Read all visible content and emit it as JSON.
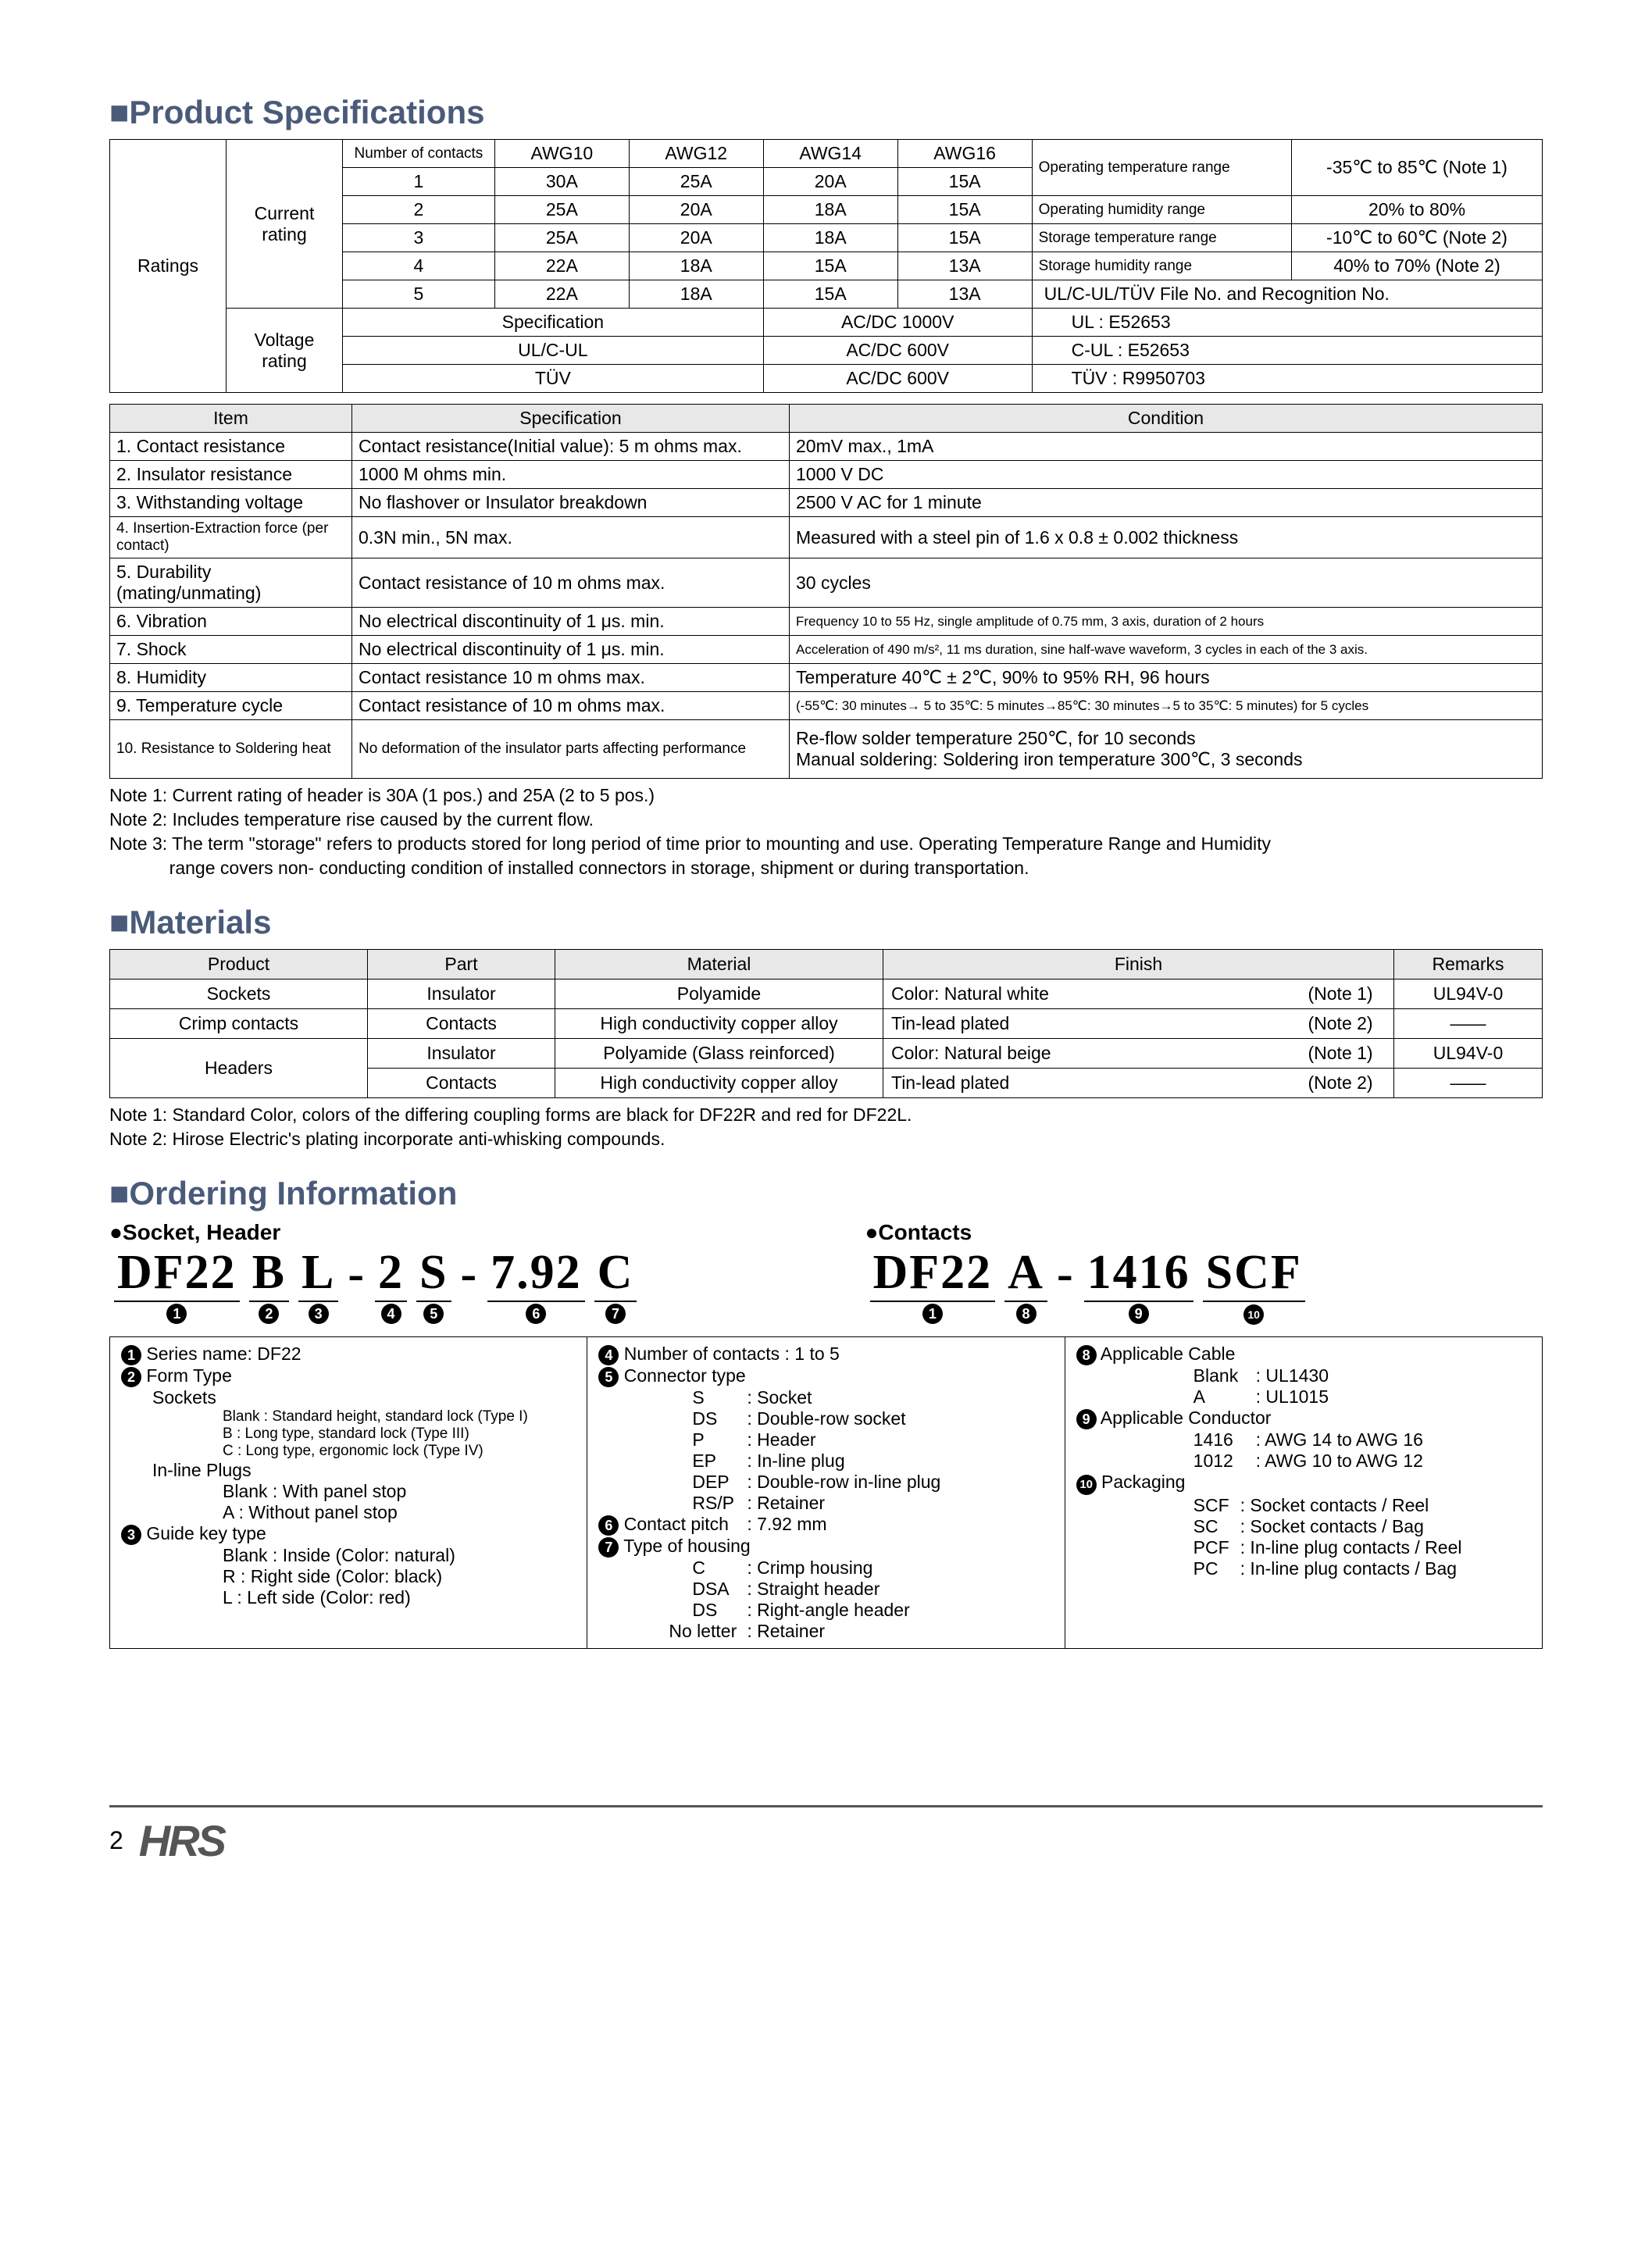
{
  "sections": {
    "title1": "■Product Specifications",
    "title2": "■Materials",
    "title3": "■Ordering Information"
  },
  "ratings": {
    "rowhead": "Ratings",
    "current": "Current rating",
    "voltage": "Voltage rating",
    "num_contacts": "Number of contacts",
    "awg_cols": [
      "AWG10",
      "AWG12",
      "AWG14",
      "AWG16"
    ],
    "rows": [
      [
        "1",
        "30A",
        "25A",
        "20A",
        "15A"
      ],
      [
        "2",
        "25A",
        "20A",
        "18A",
        "15A"
      ],
      [
        "3",
        "25A",
        "20A",
        "18A",
        "15A"
      ],
      [
        "4",
        "22A",
        "18A",
        "15A",
        "13A"
      ],
      [
        "5",
        "22A",
        "18A",
        "15A",
        "13A"
      ]
    ],
    "right": [
      [
        "Operating temperature range",
        "-35℃ to 85℃ (Note 1)"
      ],
      [
        "Operating humidity range",
        "20% to 80%"
      ],
      [
        "Storage temperature range",
        "-10℃ to 60℃ (Note 2)"
      ],
      [
        "Storage humidity range",
        "40% to 70% (Note 2)"
      ]
    ],
    "ulline": "UL/C-UL/TÜV    File No. and Recognition No.",
    "voltage_rows": [
      [
        "Specification",
        "AC/DC    1000V",
        "UL             : E52653"
      ],
      [
        "UL/C-UL",
        "AC/DC     600V",
        "C-UL         : E52653"
      ],
      [
        "TÜV",
        "AC/DC     600V",
        "TÜV          : R9950703"
      ]
    ]
  },
  "spec_table": {
    "head": [
      "Item",
      "Specification",
      "Condition"
    ],
    "rows": [
      [
        "1. Contact resistance",
        "Contact resistance(Initial value): 5 m ohms max.",
        "20mV max., 1mA"
      ],
      [
        "2. Insulator resistance",
        "1000 M ohms min.",
        "1000 V DC"
      ],
      [
        "3. Withstanding voltage",
        "No flashover or Insulator breakdown",
        "2500 V AC for 1 minute"
      ],
      [
        "4. Insertion-Extraction force (per contact)",
        "0.3N min., 5N max.",
        "Measured with a steel pin of 1.6 x 0.8 ± 0.002 thickness"
      ],
      [
        "5. Durability (mating/unmating)",
        "Contact resistance of 10 m ohms max.",
        "30 cycles"
      ],
      [
        "6. Vibration",
        "No electrical discontinuity of 1 μs. min.",
        "Frequency 10 to 55 Hz, single amplitude of 0.75 mm, 3 axis, duration of 2 hours"
      ],
      [
        "7. Shock",
        "No electrical discontinuity of 1 μs. min.",
        "Acceleration of 490 m/s², 11 ms duration, sine half-wave waveform, 3 cycles in each of the 3 axis."
      ],
      [
        "8. Humidity",
        "Contact resistance 10 m ohms max.",
        "Temperature 40℃ ± 2℃, 90% to 95% RH, 96 hours"
      ],
      [
        "9. Temperature cycle",
        "Contact resistance of 10 m ohms max.",
        "(-55℃: 30 minutes→ 5 to 35℃: 5 minutes→85℃: 30 minutes→5 to 35℃: 5 minutes) for 5 cycles"
      ],
      [
        "10. Resistance to Soldering heat",
        "No deformation of the insulator parts affecting performance",
        "Re-flow solder temperature 250℃, for 10 seconds\nManual soldering: Soldering iron temperature 300℃, 3 seconds"
      ]
    ]
  },
  "notes1": [
    "Note 1: Current rating of header is 30A (1 pos.) and 25A (2 to 5 pos.)",
    "Note 2: Includes temperature rise caused by the current flow.",
    "Note 3: The term \"storage\" refers to products stored for long period of time prior to mounting and use. Operating Temperature Range and Humidity",
    "            range covers non- conducting condition of installed connectors in storage, shipment or during transportation."
  ],
  "materials": {
    "head": [
      "Product",
      "Part",
      "Material",
      "Finish",
      "",
      "Remarks"
    ],
    "rows": [
      [
        "Sockets",
        "Insulator",
        "Polyamide",
        "Color: Natural white",
        "(Note 1)",
        "UL94V-0"
      ],
      [
        "Crimp contacts",
        "Contacts",
        "High conductivity copper alloy",
        "Tin-lead plated",
        "(Note 2)",
        "——"
      ],
      [
        "Headers",
        "Insulator",
        "Polyamide (Glass reinforced)",
        "Color: Natural beige",
        "(Note 1)",
        "UL94V-0"
      ],
      [
        "",
        "Contacts",
        "High conductivity copper alloy",
        "Tin-lead plated",
        "(Note 2)",
        "——"
      ]
    ]
  },
  "notes2": [
    "Note 1: Standard Color, colors of the differing coupling forms are black for DF22R and red for DF22L.",
    "Note 2: Hirose Electric's plating incorporate anti-whisking compounds."
  ],
  "ordering": {
    "sh": "●Socket, Header",
    "contacts": "●Contacts",
    "left_parts": [
      "DF22",
      "B",
      "L",
      "-",
      "2",
      "S",
      "-",
      "7.92",
      "C"
    ],
    "left_nums": [
      "1",
      "2",
      "3",
      "",
      "4",
      "5",
      "",
      "6",
      "7"
    ],
    "right_parts": [
      "DF22",
      "A",
      "-",
      "1416",
      "SCF"
    ],
    "right_nums": [
      "1",
      "8",
      "",
      "9",
      "10"
    ],
    "col1": {
      "l1": "❶ Series name: DF22",
      "l2": "❷ Form Type",
      "l3": "Sockets",
      "l4": "Blank  : Standard height, standard lock (Type I)",
      "l5": "B  : Long type, standard lock (Type III)",
      "l6": "C  : Long type, ergonomic lock (Type IV)",
      "l7": "In-line Plugs",
      "l8": "Blank : With panel stop",
      "l9": "A : Without panel stop",
      "l10": "❸ Guide key type",
      "l11": "Blank : Inside (Color: natural)",
      "l12": "R : Right side (Color: black)",
      "l13": "L : Left side (Color: red)"
    },
    "col2": {
      "l1": "❹ Number of contacts : 1 to 5",
      "l2": "❺ Connector type",
      "l3a": "S",
      "l3b": ": Socket",
      "l4a": "DS",
      "l4b": ": Double-row socket",
      "l5a": "P",
      "l5b": ": Header",
      "l6a": "EP",
      "l6b": ": In-line plug",
      "l7a": "DEP",
      "l7b": ": Double-row in-line plug",
      "l8a": "RS/P",
      "l8b": ": Retainer",
      "l9": "❻ Contact pitch",
      "l9b": ": 7.92 mm",
      "l10": "❼ Type of housing",
      "l11a": "C",
      "l11b": ": Crimp housing",
      "l12a": "DSA",
      "l12b": ": Straight header",
      "l13a": "DS",
      "l13b": ": Right-angle header",
      "l14a": "No letter",
      "l14b": ": Retainer"
    },
    "col3": {
      "l1": "❽ Applicable Cable",
      "l2a": "Blank",
      "l2b": ": UL1430",
      "l3a": "A",
      "l3b": ": UL1015",
      "l4": "❾ Applicable Conductor",
      "l5a": "1416",
      "l5b": ": AWG 14 to AWG 16",
      "l6a": "1012",
      "l6b": ": AWG 10 to AWG 12",
      "l7": "❿ Packaging",
      "l8a": "SCF",
      "l8b": ": Socket contacts / Reel",
      "l9a": "SC",
      "l9b": ": Socket contacts / Bag",
      "l10a": "PCF",
      "l10b": ": In-line plug contacts / Reel",
      "l11a": "PC",
      "l11b": ": In-line plug contacts / Bag"
    }
  },
  "footer": {
    "page": "2",
    "logo": "HRS"
  }
}
